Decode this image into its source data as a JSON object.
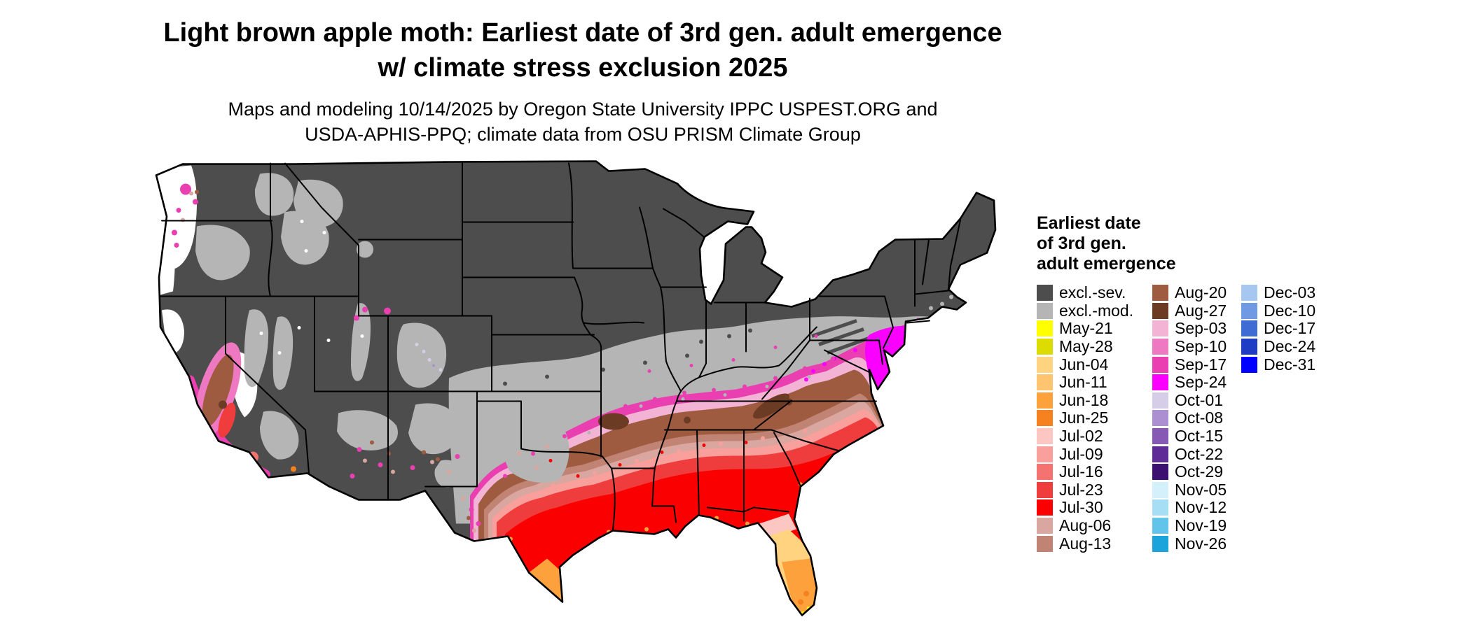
{
  "header": {
    "title_line1": "Light brown apple moth: Earliest date of 3rd gen. adult emergence",
    "title_line2": "w/ climate stress exclusion 2025",
    "subtitle_line1": "Maps and modeling 10/14/2025 by Oregon State University IPPC USPEST.ORG and",
    "subtitle_line2": "USDA-APHIS-PPQ; climate data from OSU PRISM Climate Group"
  },
  "map": {
    "description": "Contiguous United States choropleth raster of earliest 3rd generation adult emergence date",
    "background_color": "#ffffff",
    "border_color": "#000000",
    "no_data_color": "#ffffff"
  },
  "legend": {
    "title_lines": [
      "Earliest date",
      "of 3rd gen.",
      "adult emergence"
    ],
    "columns": [
      {
        "items": [
          {
            "label": "excl.-sev.",
            "color": "#4d4d4d"
          },
          {
            "label": "excl.-mod.",
            "color": "#b5b5b5"
          },
          {
            "label": "May-21",
            "color": "#ffff00"
          },
          {
            "label": "May-28",
            "color": "#dcdc00"
          },
          {
            "label": "Jun-04",
            "color": "#ffd37f"
          },
          {
            "label": "Jun-11",
            "color": "#fec470"
          },
          {
            "label": "Jun-18",
            "color": "#fca13c"
          },
          {
            "label": "Jun-25",
            "color": "#f5811f"
          },
          {
            "label": "Jul-02",
            "color": "#fcc7c3"
          },
          {
            "label": "Jul-09",
            "color": "#f99f9c"
          },
          {
            "label": "Jul-16",
            "color": "#f4726f"
          },
          {
            "label": "Jul-23",
            "color": "#ef3c3c"
          },
          {
            "label": "Jul-30",
            "color": "#fb0000"
          },
          {
            "label": "Aug-06",
            "color": "#d9a7a0"
          },
          {
            "label": "Aug-13",
            "color": "#c08374"
          }
        ]
      },
      {
        "items": [
          {
            "label": "Aug-20",
            "color": "#9e5b40"
          },
          {
            "label": "Aug-27",
            "color": "#6c3b24"
          },
          {
            "label": "Sep-03",
            "color": "#f3b3d4"
          },
          {
            "label": "Sep-10",
            "color": "#ee79c2"
          },
          {
            "label": "Sep-17",
            "color": "#ea3fb1"
          },
          {
            "label": "Sep-24",
            "color": "#fa00ff"
          },
          {
            "label": "Oct-01",
            "color": "#d6cde6"
          },
          {
            "label": "Oct-08",
            "color": "#ab8fd0"
          },
          {
            "label": "Oct-15",
            "color": "#8659b5"
          },
          {
            "label": "Oct-22",
            "color": "#5e2b97"
          },
          {
            "label": "Oct-29",
            "color": "#3b1070"
          },
          {
            "label": "Nov-05",
            "color": "#d4f0fa"
          },
          {
            "label": "Nov-12",
            "color": "#a6dff5"
          },
          {
            "label": "Nov-19",
            "color": "#62c4ea"
          },
          {
            "label": "Nov-26",
            "color": "#1ba3dc"
          }
        ]
      },
      {
        "items": [
          {
            "label": "Dec-03",
            "color": "#a6c8f0"
          },
          {
            "label": "Dec-10",
            "color": "#6f9ae3"
          },
          {
            "label": "Dec-17",
            "color": "#3f6cd4"
          },
          {
            "label": "Dec-24",
            "color": "#1f3dc4"
          },
          {
            "label": "Dec-31",
            "color": "#0000ff"
          }
        ]
      }
    ]
  }
}
